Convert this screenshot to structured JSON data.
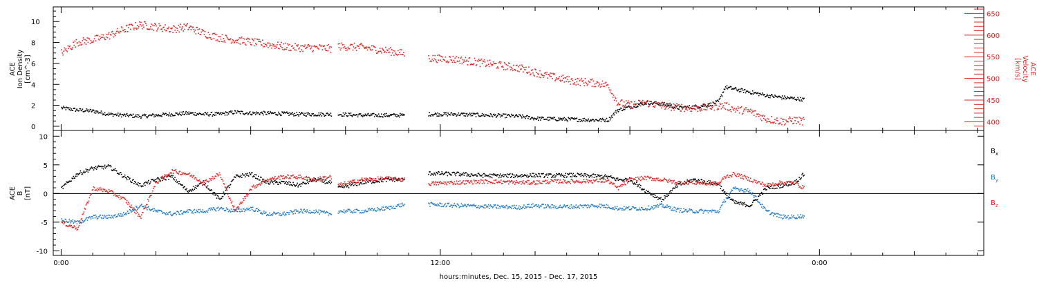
{
  "chart_data": [
    {
      "type": "scatter",
      "panel": "top",
      "ylabel_lines": [
        "ACE",
        "Ion Density",
        "[cm^-3]"
      ],
      "y2label_lines": [
        "ACE",
        "Velocity",
        "[km/s]"
      ],
      "ylim": [
        -0.4,
        11.4
      ],
      "yticks": [
        0,
        2,
        4,
        6,
        8,
        10
      ],
      "y2lim": [
        380,
        665
      ],
      "y2ticks": [
        400,
        450,
        500,
        550,
        600,
        650
      ],
      "series": [
        {
          "axis": "left",
          "color": "#000000",
          "gaps": [
            [
              8.55,
              8.75
            ],
            [
              10.85,
              11.6
            ]
          ],
          "points": [
            [
              0.0,
              1.8
            ],
            [
              0.5,
              1.6
            ],
            [
              1.0,
              1.5
            ],
            [
              1.5,
              1.2
            ],
            [
              2.0,
              1.1
            ],
            [
              2.5,
              1.0
            ],
            [
              3.0,
              1.1
            ],
            [
              3.5,
              1.2
            ],
            [
              4.0,
              1.3
            ],
            [
              4.5,
              1.2
            ],
            [
              5.0,
              1.2
            ],
            [
              5.5,
              1.4
            ],
            [
              6.0,
              1.3
            ],
            [
              6.5,
              1.3
            ],
            [
              7.0,
              1.25
            ],
            [
              7.5,
              1.2
            ],
            [
              8.0,
              1.2
            ],
            [
              8.5,
              1.2
            ],
            [
              8.75,
              1.2
            ],
            [
              9.5,
              1.1
            ],
            [
              10.3,
              1.1
            ],
            [
              10.85,
              1.1
            ],
            [
              11.6,
              1.2
            ],
            [
              12.5,
              1.2
            ],
            [
              13.5,
              1.1
            ],
            [
              14.5,
              1.0
            ],
            [
              15.0,
              0.8
            ],
            [
              15.5,
              0.75
            ],
            [
              16.2,
              0.7
            ],
            [
              17.0,
              0.65
            ],
            [
              17.3,
              0.65
            ],
            [
              17.6,
              1.6
            ],
            [
              18.0,
              1.9
            ],
            [
              18.5,
              2.3
            ],
            [
              19.0,
              2.2
            ],
            [
              19.5,
              1.8
            ],
            [
              20.0,
              1.9
            ],
            [
              20.5,
              2.1
            ],
            [
              20.8,
              2.4
            ],
            [
              21.0,
              3.8
            ],
            [
              21.3,
              3.6
            ],
            [
              21.8,
              3.3
            ],
            [
              22.3,
              3.0
            ],
            [
              22.8,
              2.8
            ],
            [
              23.2,
              2.7
            ],
            [
              23.5,
              2.6
            ]
          ]
        },
        {
          "axis": "right",
          "color": "#e8211f",
          "gaps": [
            [
              8.55,
              8.75
            ],
            [
              10.85,
              11.6
            ]
          ],
          "points": [
            [
              0.0,
              560
            ],
            [
              0.5,
              585
            ],
            [
              1.0,
              590
            ],
            [
              1.5,
              600
            ],
            [
              2.0,
              615
            ],
            [
              2.5,
              625
            ],
            [
              3.0,
              620
            ],
            [
              3.5,
              615
            ],
            [
              4.0,
              620
            ],
            [
              4.5,
              605
            ],
            [
              5.0,
              595
            ],
            [
              5.5,
              590
            ],
            [
              6.0,
              585
            ],
            [
              6.5,
              580
            ],
            [
              7.0,
              575
            ],
            [
              7.5,
              572
            ],
            [
              8.0,
              572
            ],
            [
              8.5,
              570
            ],
            [
              8.75,
              575
            ],
            [
              9.5,
              573
            ],
            [
              10.3,
              565
            ],
            [
              10.85,
              558
            ],
            [
              11.6,
              548
            ],
            [
              12.5,
              545
            ],
            [
              13.5,
              535
            ],
            [
              14.5,
              525
            ],
            [
              15.0,
              515
            ],
            [
              15.5,
              505
            ],
            [
              16.2,
              495
            ],
            [
              17.0,
              490
            ],
            [
              17.3,
              485
            ],
            [
              17.6,
              445
            ],
            [
              18.0,
              440
            ],
            [
              18.5,
              445
            ],
            [
              19.0,
              438
            ],
            [
              19.5,
              435
            ],
            [
              20.0,
              432
            ],
            [
              20.5,
              435
            ],
            [
              20.8,
              438
            ],
            [
              21.0,
              438
            ],
            [
              21.3,
              430
            ],
            [
              21.8,
              425
            ],
            [
              22.3,
              408
            ],
            [
              22.8,
              402
            ],
            [
              23.2,
              405
            ],
            [
              23.5,
              402
            ]
          ]
        }
      ]
    },
    {
      "type": "scatter",
      "panel": "bottom",
      "ylabel_lines": [
        "ACE",
        "B",
        "[nT]"
      ],
      "ylim": [
        -10.8,
        11
      ],
      "yticks": [
        -10,
        -5,
        0,
        5,
        10
      ],
      "series": [
        {
          "name": "Bx",
          "color": "#000000",
          "gaps": [
            [
              8.55,
              8.75
            ],
            [
              10.85,
              11.6
            ]
          ],
          "points": [
            [
              0.0,
              1.0
            ],
            [
              0.5,
              3.5
            ],
            [
              1.0,
              4.5
            ],
            [
              1.5,
              4.8
            ],
            [
              2.0,
              3.0
            ],
            [
              2.5,
              1.5
            ],
            [
              3.0,
              2.5
            ],
            [
              3.5,
              3.0
            ],
            [
              4.0,
              0.5
            ],
            [
              4.5,
              2.0
            ],
            [
              5.0,
              -1.0
            ],
            [
              5.5,
              3.0
            ],
            [
              6.0,
              3.5
            ],
            [
              6.5,
              2.0
            ],
            [
              7.0,
              2.0
            ],
            [
              7.5,
              1.5
            ],
            [
              8.0,
              2.5
            ],
            [
              8.5,
              2.0
            ],
            [
              8.75,
              1.0
            ],
            [
              9.5,
              2.0
            ],
            [
              10.3,
              2.5
            ],
            [
              10.85,
              2.5
            ],
            [
              11.6,
              3.6
            ],
            [
              12.5,
              3.5
            ],
            [
              13.5,
              3.2
            ],
            [
              14.5,
              3.2
            ],
            [
              15.0,
              3.3
            ],
            [
              15.5,
              3.2
            ],
            [
              16.2,
              3.3
            ],
            [
              17.0,
              3.1
            ],
            [
              17.3,
              3.0
            ],
            [
              17.6,
              2.5
            ],
            [
              18.0,
              2.5
            ],
            [
              18.5,
              0.5
            ],
            [
              19.0,
              -1.0
            ],
            [
              19.5,
              1.5
            ],
            [
              20.0,
              2.5
            ],
            [
              20.5,
              2.0
            ],
            [
              20.8,
              1.8
            ],
            [
              21.0,
              0.0
            ],
            [
              21.3,
              -1.5
            ],
            [
              21.8,
              -2.0
            ],
            [
              22.3,
              1.0
            ],
            [
              22.8,
              1.5
            ],
            [
              23.2,
              2.0
            ],
            [
              23.5,
              3.5
            ]
          ]
        },
        {
          "name": "By",
          "color": "#1f78c8",
          "gaps": [
            [
              8.55,
              8.75
            ],
            [
              10.85,
              11.6
            ]
          ],
          "points": [
            [
              0.0,
              -4.5
            ],
            [
              0.5,
              -5.0
            ],
            [
              1.0,
              -4.0
            ],
            [
              1.5,
              -4.0
            ],
            [
              2.0,
              -3.5
            ],
            [
              2.5,
              -2.0
            ],
            [
              3.0,
              -3.0
            ],
            [
              3.5,
              -3.5
            ],
            [
              4.0,
              -3.0
            ],
            [
              4.5,
              -3.0
            ],
            [
              5.0,
              -2.5
            ],
            [
              5.5,
              -3.0
            ],
            [
              6.0,
              -2.5
            ],
            [
              6.5,
              -3.5
            ],
            [
              7.0,
              -3.5
            ],
            [
              7.5,
              -3.0
            ],
            [
              8.0,
              -3.0
            ],
            [
              8.5,
              -3.5
            ],
            [
              8.75,
              -3.0
            ],
            [
              9.5,
              -3.0
            ],
            [
              10.3,
              -2.5
            ],
            [
              10.85,
              -1.8
            ],
            [
              11.6,
              -1.8
            ],
            [
              12.5,
              -2.0
            ],
            [
              13.5,
              -2.2
            ],
            [
              14.5,
              -2.3
            ],
            [
              15.0,
              -2.0
            ],
            [
              15.5,
              -2.2
            ],
            [
              16.2,
              -2.2
            ],
            [
              17.0,
              -2.0
            ],
            [
              17.3,
              -2.2
            ],
            [
              17.6,
              -2.5
            ],
            [
              18.0,
              -2.5
            ],
            [
              18.5,
              -2.5
            ],
            [
              19.0,
              -2.0
            ],
            [
              19.5,
              -2.8
            ],
            [
              20.0,
              -3.0
            ],
            [
              20.5,
              -3.0
            ],
            [
              20.8,
              -3.0
            ],
            [
              21.0,
              -1.0
            ],
            [
              21.3,
              1.0
            ],
            [
              21.8,
              0.5
            ],
            [
              22.3,
              -3.0
            ],
            [
              22.8,
              -4.0
            ],
            [
              23.2,
              -4.0
            ],
            [
              23.5,
              -3.8
            ]
          ]
        },
        {
          "name": "Bz",
          "color": "#e8211f",
          "gaps": [
            [
              8.55,
              8.75
            ],
            [
              10.85,
              11.6
            ]
          ],
          "points": [
            [
              0.0,
              -5.0
            ],
            [
              0.5,
              -6.0
            ],
            [
              1.0,
              1.0
            ],
            [
              1.5,
              0.5
            ],
            [
              2.0,
              -1.0
            ],
            [
              2.5,
              -4.0
            ],
            [
              3.0,
              2.0
            ],
            [
              3.5,
              4.0
            ],
            [
              4.0,
              3.5
            ],
            [
              4.5,
              2.0
            ],
            [
              5.0,
              3.5
            ],
            [
              5.5,
              -3.0
            ],
            [
              6.0,
              1.0
            ],
            [
              6.5,
              2.5
            ],
            [
              7.0,
              3.0
            ],
            [
              7.5,
              3.0
            ],
            [
              8.0,
              2.5
            ],
            [
              8.5,
              3.0
            ],
            [
              8.75,
              1.5
            ],
            [
              9.5,
              2.5
            ],
            [
              10.3,
              2.7
            ],
            [
              10.85,
              2.5
            ],
            [
              11.6,
              1.8
            ],
            [
              12.5,
              2.0
            ],
            [
              13.5,
              2.2
            ],
            [
              14.5,
              2.0
            ],
            [
              15.0,
              2.0
            ],
            [
              15.5,
              2.2
            ],
            [
              16.2,
              2.2
            ],
            [
              17.0,
              2.3
            ],
            [
              17.3,
              2.3
            ],
            [
              17.6,
              1.0
            ],
            [
              18.0,
              2.5
            ],
            [
              18.5,
              2.8
            ],
            [
              19.0,
              2.5
            ],
            [
              19.5,
              2.0
            ],
            [
              20.0,
              2.0
            ],
            [
              20.5,
              1.8
            ],
            [
              20.8,
              1.8
            ],
            [
              21.0,
              3.0
            ],
            [
              21.3,
              3.5
            ],
            [
              21.8,
              2.5
            ],
            [
              22.3,
              1.5
            ],
            [
              22.8,
              2.0
            ],
            [
              23.2,
              2.0
            ],
            [
              23.5,
              1.0
            ]
          ]
        }
      ]
    }
  ],
  "x_axis": {
    "xlim": [
      -0.25,
      29.2
    ],
    "xticks": [
      0,
      12,
      24
    ],
    "ticklabels": [
      "0:00",
      "12:00",
      "0:00"
    ],
    "xlabel": "hours:minutes, Dec. 15, 2015 - Dec. 17, 2015"
  },
  "legend": {
    "labels": [
      {
        "main": "B",
        "sub": "x",
        "color": "#000000"
      },
      {
        "main": "B",
        "sub": "y",
        "color": "#1f78c8"
      },
      {
        "main": "B",
        "sub": "z",
        "color": "#e8211f"
      }
    ],
    "placement": "right"
  },
  "colors": {
    "black": "#000000",
    "red": "#e8211f",
    "blue": "#1f78c8"
  }
}
